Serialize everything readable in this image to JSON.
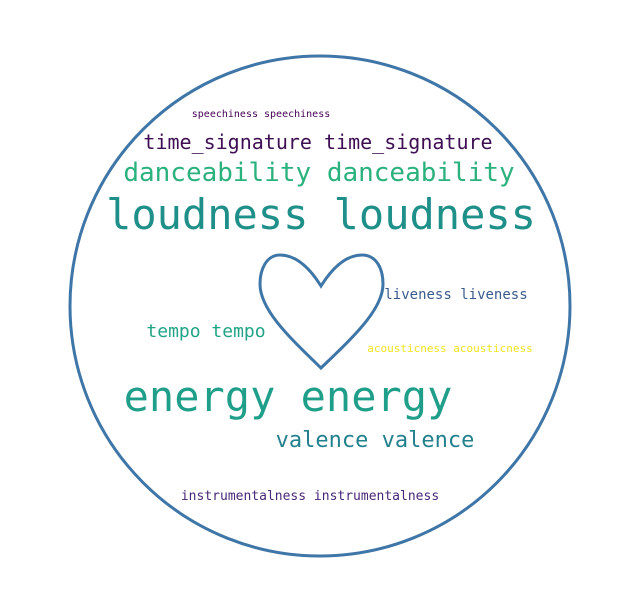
{
  "colors": {
    "outline": "#3f76a8",
    "background": "#ffffff"
  },
  "words": {
    "speechiness": {
      "text": "speechiness speechiness",
      "color": "#440154"
    },
    "time_signature": {
      "text": "time_signature time_signature",
      "color": "#3e0f52"
    },
    "danceability": {
      "text": "danceability danceability",
      "color": "#2bb17d"
    },
    "loudness": {
      "text": "loudness loudness",
      "color": "#1f8f89"
    },
    "liveness": {
      "text": "liveness liveness",
      "color": "#3b5a8c"
    },
    "tempo": {
      "text": "tempo tempo",
      "color": "#20a386"
    },
    "acousticness": {
      "text": "acousticness acousticness",
      "color": "#f0e51c"
    },
    "energy": {
      "text": "energy energy",
      "color": "#1f9e89"
    },
    "valence": {
      "text": "valence valence",
      "color": "#23818e"
    },
    "instrumentalness": {
      "text": "instrumentalness instrumentalness",
      "color": "#482777"
    }
  }
}
